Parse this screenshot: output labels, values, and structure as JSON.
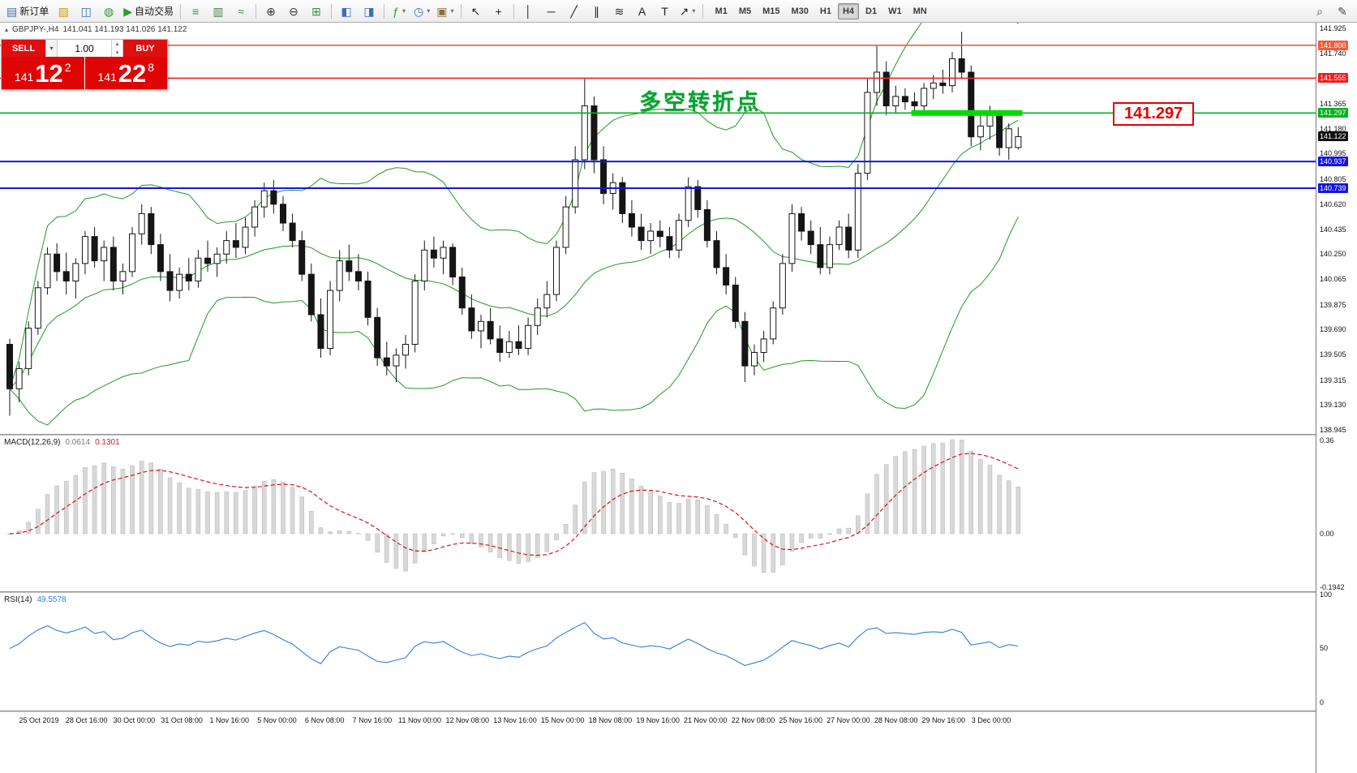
{
  "icons": {
    "collapse": "▴",
    "dropdown": "▾",
    "spinner_up": "▴",
    "spinner_down": "▾"
  },
  "toolbar": {
    "groups": [
      {
        "items": [
          {
            "name": "new-order-button",
            "glyph": "▤",
            "color": "#3c6eb4",
            "label": "新订单"
          },
          {
            "name": "profiles-button",
            "glyph": "▨",
            "color": "#c79f1e"
          },
          {
            "name": "chart-window-button",
            "glyph": "◫",
            "color": "#3c6eb4"
          },
          {
            "name": "data-window-button",
            "glyph": "◍",
            "color": "#3a8f3a"
          },
          {
            "name": "autotrading-button",
            "glyph": "▶",
            "color": "#23a123",
            "label": "自动交易"
          }
        ]
      },
      {
        "items": [
          {
            "name": "bar-chart-button",
            "glyph": "≡",
            "color": "#4f7f4f"
          },
          {
            "name": "candle-chart-button",
            "glyph": "▥",
            "color": "#4f7f4f"
          },
          {
            "name": "line-chart-button",
            "glyph": "≈",
            "color": "#4f7f4f"
          }
        ]
      },
      {
        "items": [
          {
            "name": "zoom-in-button",
            "glyph": "⊕",
            "color": "#333333"
          },
          {
            "name": "zoom-out-button",
            "glyph": "⊖",
            "color": "#333333"
          },
          {
            "name": "tile-windows-button",
            "glyph": "⊞",
            "color": "#3a8f3a"
          }
        ]
      },
      {
        "items": [
          {
            "name": "auto-scroll-button",
            "glyph": "◧",
            "color": "#3c6eb4"
          },
          {
            "name": "chart-shift-button",
            "glyph": "◨",
            "color": "#3c6eb4"
          }
        ]
      },
      {
        "items": [
          {
            "name": "indicators-button",
            "glyph": "ƒ",
            "color": "#23a123",
            "dropdown": true
          },
          {
            "name": "periods-button",
            "glyph": "◷",
            "color": "#3c6eb4",
            "dropdown": true
          },
          {
            "name": "templates-button",
            "glyph": "▣",
            "color": "#8a6f3a",
            "dropdown": true
          }
        ]
      },
      {
        "items": [
          {
            "name": "cursor-button",
            "glyph": "↖",
            "color": "#222222"
          },
          {
            "name": "crosshair-button",
            "glyph": "+",
            "color": "#222222"
          }
        ]
      },
      {
        "items": [
          {
            "name": "vertical-line-button",
            "glyph": "│",
            "color": "#222222"
          },
          {
            "name": "horizontal-line-button",
            "glyph": "─",
            "color": "#222222"
          },
          {
            "name": "trendline-button",
            "glyph": "╱",
            "color": "#222222"
          },
          {
            "name": "channel-button",
            "glyph": "∥",
            "color": "#222222"
          },
          {
            "name": "fibonacci-button",
            "glyph": "≋",
            "color": "#222222"
          },
          {
            "name": "text-button",
            "glyph": "A",
            "color": "#222222"
          },
          {
            "name": "label-button",
            "glyph": "T",
            "color": "#222222"
          },
          {
            "name": "arrows-button",
            "glyph": "↗",
            "color": "#222222",
            "dropdown": true
          }
        ]
      }
    ],
    "right_items": [
      {
        "name": "search-button",
        "glyph": "⌕"
      },
      {
        "name": "edit-button",
        "glyph": "✎"
      }
    ]
  },
  "timeframes": {
    "items": [
      "M1",
      "M5",
      "M15",
      "M30",
      "H1",
      "H4",
      "D1",
      "W1",
      "MN"
    ],
    "active": "H4"
  },
  "symbol_header": {
    "title": "GBPJPY-,H4",
    "quotes": "141.041 141.193 141.026 141.122"
  },
  "quote_panel": {
    "sell_label": "SELL",
    "buy_label": "BUY",
    "volume": "1.00",
    "price_prefix": "141",
    "sell_big": "12",
    "sell_sup": "2",
    "buy_big": "22",
    "buy_sup": "8"
  },
  "annotation": "多空转折点",
  "price_label_box": "141.297",
  "price_axis": {
    "labels": [
      {
        "text": "141.925",
        "price": 141.925,
        "type": "tick"
      },
      {
        "text": "141.800",
        "price": 141.8,
        "type": "badge",
        "bg": "#f25c3a"
      },
      {
        "text": "141.740",
        "price": 141.74,
        "type": "tick"
      },
      {
        "text": "141.555",
        "price": 141.555,
        "type": "badge",
        "bg": "#f01f1f"
      },
      {
        "text": "141.365",
        "price": 141.365,
        "type": "tick"
      },
      {
        "text": "141.297",
        "price": 141.297,
        "type": "badge",
        "bg": "#00b41e"
      },
      {
        "text": "141.180",
        "price": 141.18,
        "type": "tick"
      },
      {
        "text": "141.122",
        "price": 141.122,
        "type": "badge",
        "bg": "#101010"
      },
      {
        "text": "140.995",
        "price": 140.995,
        "type": "tick"
      },
      {
        "text": "140.937",
        "price": 140.937,
        "type": "badge",
        "bg": "#1414e6"
      },
      {
        "text": "140.805",
        "price": 140.805,
        "type": "tick"
      },
      {
        "text": "140.739",
        "price": 140.739,
        "type": "badge",
        "bg": "#1414e6"
      },
      {
        "text": "140.620",
        "price": 140.62,
        "type": "tick"
      },
      {
        "text": "140.435",
        "price": 140.435,
        "type": "tick"
      },
      {
        "text": "140.250",
        "price": 140.25,
        "type": "tick"
      },
      {
        "text": "140.065",
        "price": 140.065,
        "type": "tick"
      },
      {
        "text": "139.875",
        "price": 139.875,
        "type": "tick"
      },
      {
        "text": "139.690",
        "price": 139.69,
        "type": "tick"
      },
      {
        "text": "139.505",
        "price": 139.505,
        "type": "tick"
      },
      {
        "text": "139.315",
        "price": 139.315,
        "type": "tick"
      },
      {
        "text": "139.130",
        "price": 139.13,
        "type": "tick"
      },
      {
        "text": "138.945",
        "price": 138.945,
        "type": "tick"
      }
    ]
  },
  "chart_data": {
    "type": "candlestick",
    "symbol": "GBPJPY-",
    "timeframe": "H4",
    "y_axis": {
      "max": 141.925,
      "min": 138.945
    },
    "bollinger": {
      "period": 20,
      "deviation": 2
    },
    "levels": [
      {
        "price": 141.8,
        "color": "#f25c3a",
        "width": 1.6
      },
      {
        "price": 141.555,
        "color": "#f01f1f",
        "width": 1.6
      },
      {
        "price": 141.297,
        "color": "#00b41e",
        "width": 1.6
      },
      {
        "price": 140.937,
        "color": "#1414e6",
        "width": 2
      },
      {
        "price": 140.739,
        "color": "#1414e6",
        "width": 2
      }
    ],
    "highlight_zone": {
      "price": 141.297,
      "from_index": 96,
      "to_index": 107,
      "color": "#00dc00",
      "thickness": 7
    },
    "ohlc": [
      [
        139.58,
        139.62,
        139.05,
        139.25
      ],
      [
        139.25,
        139.45,
        139.15,
        139.4
      ],
      [
        139.4,
        139.75,
        139.35,
        139.7
      ],
      [
        139.7,
        140.05,
        139.65,
        140.0
      ],
      [
        140.0,
        140.3,
        139.95,
        140.25
      ],
      [
        140.25,
        140.33,
        140.05,
        140.12
      ],
      [
        140.12,
        140.26,
        139.95,
        140.05
      ],
      [
        140.05,
        140.22,
        139.92,
        140.18
      ],
      [
        140.18,
        140.42,
        140.1,
        140.38
      ],
      [
        140.38,
        140.45,
        140.15,
        140.2
      ],
      [
        140.2,
        140.35,
        140.05,
        140.3
      ],
      [
        140.3,
        140.38,
        139.98,
        140.05
      ],
      [
        140.05,
        140.18,
        139.95,
        140.12
      ],
      [
        140.12,
        140.45,
        140.08,
        140.4
      ],
      [
        140.4,
        140.62,
        140.32,
        140.55
      ],
      [
        140.55,
        140.6,
        140.25,
        140.32
      ],
      [
        140.32,
        140.4,
        140.05,
        140.12
      ],
      [
        140.12,
        140.25,
        139.9,
        139.98
      ],
      [
        139.98,
        140.15,
        139.92,
        140.1
      ],
      [
        140.1,
        140.22,
        139.98,
        140.05
      ],
      [
        140.05,
        140.28,
        140.0,
        140.22
      ],
      [
        140.22,
        140.35,
        140.12,
        140.18
      ],
      [
        140.18,
        140.3,
        140.08,
        140.25
      ],
      [
        140.25,
        140.42,
        140.18,
        140.35
      ],
      [
        140.35,
        140.48,
        140.22,
        140.3
      ],
      [
        140.3,
        140.52,
        140.25,
        140.45
      ],
      [
        140.45,
        140.65,
        140.38,
        140.6
      ],
      [
        140.6,
        140.78,
        140.52,
        140.72
      ],
      [
        140.72,
        140.8,
        140.55,
        140.62
      ],
      [
        140.62,
        140.68,
        140.42,
        140.48
      ],
      [
        140.48,
        140.55,
        140.3,
        140.35
      ],
      [
        140.35,
        140.42,
        140.05,
        140.1
      ],
      [
        140.1,
        140.18,
        139.75,
        139.8
      ],
      [
        139.8,
        139.92,
        139.48,
        139.55
      ],
      [
        139.55,
        140.05,
        139.5,
        139.98
      ],
      [
        139.98,
        140.28,
        139.9,
        140.2
      ],
      [
        140.2,
        140.32,
        140.05,
        140.12
      ],
      [
        140.12,
        140.25,
        139.98,
        140.05
      ],
      [
        140.05,
        140.12,
        139.72,
        139.78
      ],
      [
        139.78,
        139.85,
        139.42,
        139.48
      ],
      [
        139.48,
        139.6,
        139.35,
        139.42
      ],
      [
        139.42,
        139.55,
        139.3,
        139.5
      ],
      [
        139.5,
        139.65,
        139.4,
        139.58
      ],
      [
        139.58,
        140.1,
        139.52,
        140.05
      ],
      [
        140.05,
        140.35,
        139.98,
        140.28
      ],
      [
        140.28,
        140.38,
        140.15,
        140.22
      ],
      [
        140.22,
        140.35,
        140.1,
        140.3
      ],
      [
        140.3,
        140.33,
        140.02,
        140.08
      ],
      [
        140.08,
        140.15,
        139.8,
        139.85
      ],
      [
        139.85,
        139.95,
        139.62,
        139.68
      ],
      [
        139.68,
        139.8,
        139.55,
        139.75
      ],
      [
        139.75,
        139.85,
        139.58,
        139.62
      ],
      [
        139.62,
        139.72,
        139.45,
        139.52
      ],
      [
        139.52,
        139.68,
        139.48,
        139.6
      ],
      [
        139.6,
        139.72,
        139.5,
        139.55
      ],
      [
        139.55,
        139.78,
        139.5,
        139.72
      ],
      [
        139.72,
        139.92,
        139.65,
        139.85
      ],
      [
        139.85,
        140.05,
        139.78,
        139.95
      ],
      [
        139.95,
        140.35,
        139.9,
        140.3
      ],
      [
        140.3,
        140.68,
        140.25,
        140.6
      ],
      [
        140.6,
        141.05,
        140.55,
        140.95
      ],
      [
        140.95,
        141.55,
        140.88,
        141.35
      ],
      [
        141.35,
        141.42,
        140.85,
        140.95
      ],
      [
        140.95,
        141.05,
        140.62,
        140.7
      ],
      [
        140.7,
        140.85,
        140.58,
        140.78
      ],
      [
        140.78,
        140.82,
        140.48,
        140.55
      ],
      [
        140.55,
        140.65,
        140.38,
        140.45
      ],
      [
        140.45,
        140.55,
        140.28,
        140.35
      ],
      [
        140.35,
        140.48,
        140.25,
        140.42
      ],
      [
        140.42,
        140.5,
        140.3,
        140.38
      ],
      [
        140.38,
        140.45,
        140.22,
        140.28
      ],
      [
        140.28,
        140.55,
        140.22,
        140.5
      ],
      [
        140.5,
        140.82,
        140.45,
        140.75
      ],
      [
        140.75,
        140.8,
        140.52,
        140.58
      ],
      [
        140.58,
        140.65,
        140.3,
        140.35
      ],
      [
        140.35,
        140.42,
        140.1,
        140.15
      ],
      [
        140.15,
        140.25,
        139.95,
        140.02
      ],
      [
        140.02,
        140.08,
        139.7,
        139.75
      ],
      [
        139.75,
        139.82,
        139.3,
        139.42
      ],
      [
        139.42,
        139.58,
        139.35,
        139.52
      ],
      [
        139.52,
        139.68,
        139.45,
        139.62
      ],
      [
        139.62,
        139.9,
        139.58,
        139.85
      ],
      [
        139.85,
        140.25,
        139.8,
        140.18
      ],
      [
        140.18,
        140.62,
        140.12,
        140.55
      ],
      [
        140.55,
        140.6,
        140.35,
        140.42
      ],
      [
        140.42,
        140.5,
        140.25,
        140.32
      ],
      [
        140.32,
        140.45,
        140.1,
        140.15
      ],
      [
        140.15,
        140.38,
        140.1,
        140.32
      ],
      [
        140.32,
        140.5,
        140.28,
        140.45
      ],
      [
        140.45,
        140.55,
        140.22,
        140.28
      ],
      [
        140.28,
        140.92,
        140.22,
        140.85
      ],
      [
        140.85,
        141.55,
        140.8,
        141.45
      ],
      [
        141.45,
        141.8,
        141.35,
        141.6
      ],
      [
        141.6,
        141.68,
        141.28,
        141.35
      ],
      [
        141.35,
        141.5,
        141.3,
        141.42
      ],
      [
        141.42,
        141.48,
        141.32,
        141.38
      ],
      [
        141.38,
        141.45,
        141.28,
        141.35
      ],
      [
        141.35,
        141.52,
        141.3,
        141.48
      ],
      [
        141.48,
        141.58,
        141.4,
        141.52
      ],
      [
        141.52,
        141.62,
        141.44,
        141.5
      ],
      [
        141.5,
        141.75,
        141.45,
        141.7
      ],
      [
        141.7,
        141.9,
        141.55,
        141.6
      ],
      [
        141.6,
        141.65,
        141.05,
        141.12
      ],
      [
        141.12,
        141.3,
        141.02,
        141.2
      ],
      [
        141.2,
        141.35,
        141.1,
        141.28
      ],
      [
        141.28,
        141.32,
        140.98,
        141.04
      ],
      [
        141.04,
        141.22,
        140.95,
        141.18
      ],
      [
        141.041,
        141.193,
        141.026,
        141.122
      ]
    ],
    "x_labels": [
      "25 Oct 2019",
      "28 Oct 16:00",
      "30 Oct 00:00",
      "31 Oct 08:00",
      "1 Nov 16:00",
      "5 Nov 00:00",
      "6 Nov 08:00",
      "7 Nov 16:00",
      "11 Nov 00:00",
      "12 Nov 08:00",
      "13 Nov 16:00",
      "15 Nov 00:00",
      "18 Nov 08:00",
      "19 Nov 16:00",
      "21 Nov 00:00",
      "22 Nov 08:00",
      "25 Nov 16:00",
      "27 Nov 00:00",
      "28 Nov 08:00",
      "29 Nov 16:00",
      "3 Dec 00:00"
    ],
    "indicators": {
      "macd": {
        "label": "MACD(12,26,9)",
        "value_main": "0.0614",
        "value_signal": "0.1301",
        "scale_max": "0.36",
        "scale_zero": "0.00",
        "scale_min": "-0.1942"
      },
      "rsi": {
        "label": "RSI(14)",
        "value": "49.5578",
        "scale": [
          "100",
          "50",
          "0"
        ]
      }
    }
  }
}
